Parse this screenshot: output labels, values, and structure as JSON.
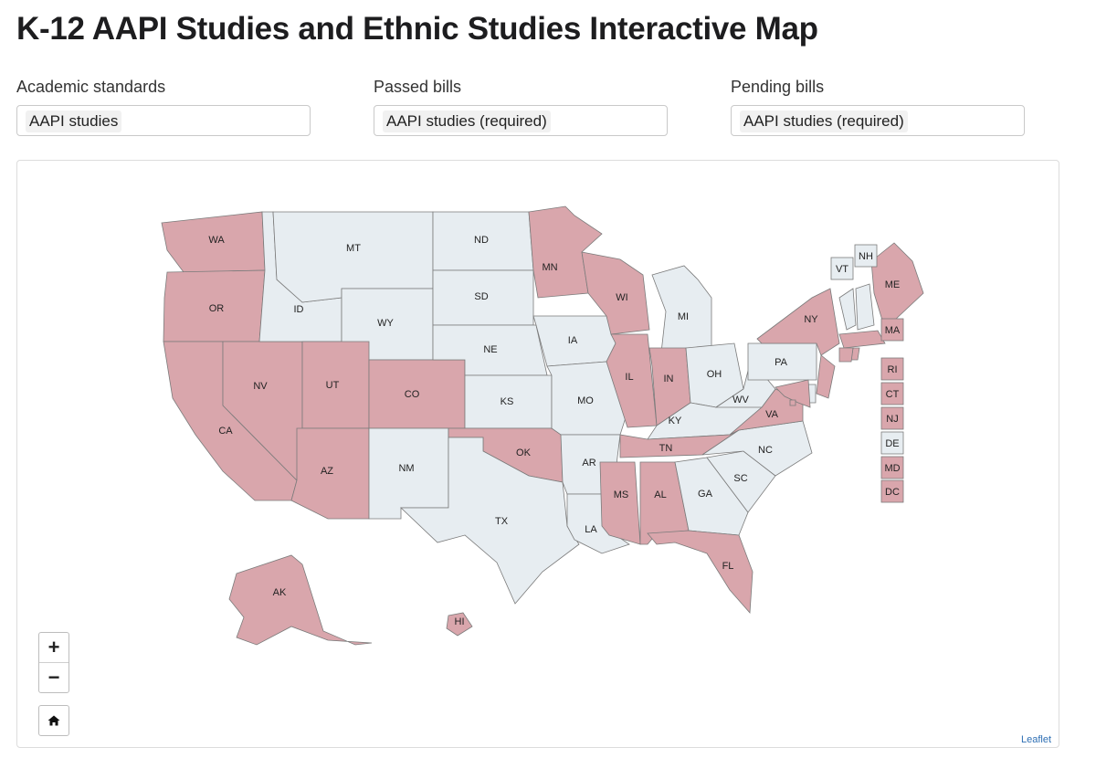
{
  "page": {
    "title": "K-12 AAPI Studies and Ethnic Studies Interactive Map"
  },
  "filters": {
    "academic": {
      "label": "Academic standards",
      "value": "AAPI studies"
    },
    "passed": {
      "label": "Passed bills",
      "value": "AAPI studies (required)"
    },
    "pending": {
      "label": "Pending bills",
      "value": "AAPI studies (required)"
    }
  },
  "map": {
    "colors": {
      "highlighted": "#d9a6ac",
      "default": "#e7edf1"
    },
    "zoom_in_label": "+",
    "zoom_out_label": "−",
    "home_icon": "home-icon",
    "attribution": "Leaflet",
    "states": [
      {
        "code": "WA",
        "highlighted": true
      },
      {
        "code": "OR",
        "highlighted": true
      },
      {
        "code": "CA",
        "highlighted": true
      },
      {
        "code": "NV",
        "highlighted": true
      },
      {
        "code": "ID",
        "highlighted": false
      },
      {
        "code": "MT",
        "highlighted": false
      },
      {
        "code": "WY",
        "highlighted": false
      },
      {
        "code": "UT",
        "highlighted": true
      },
      {
        "code": "AZ",
        "highlighted": true
      },
      {
        "code": "CO",
        "highlighted": true
      },
      {
        "code": "NM",
        "highlighted": false
      },
      {
        "code": "ND",
        "highlighted": false
      },
      {
        "code": "SD",
        "highlighted": false
      },
      {
        "code": "NE",
        "highlighted": false
      },
      {
        "code": "KS",
        "highlighted": false
      },
      {
        "code": "OK",
        "highlighted": true
      },
      {
        "code": "TX",
        "highlighted": false
      },
      {
        "code": "MN",
        "highlighted": true
      },
      {
        "code": "IA",
        "highlighted": false
      },
      {
        "code": "MO",
        "highlighted": false
      },
      {
        "code": "AR",
        "highlighted": false
      },
      {
        "code": "LA",
        "highlighted": false
      },
      {
        "code": "WI",
        "highlighted": true
      },
      {
        "code": "IL",
        "highlighted": true
      },
      {
        "code": "MI",
        "highlighted": false
      },
      {
        "code": "IN",
        "highlighted": true
      },
      {
        "code": "OH",
        "highlighted": false
      },
      {
        "code": "KY",
        "highlighted": false
      },
      {
        "code": "TN",
        "highlighted": true
      },
      {
        "code": "MS",
        "highlighted": true
      },
      {
        "code": "AL",
        "highlighted": true
      },
      {
        "code": "GA",
        "highlighted": false
      },
      {
        "code": "FL",
        "highlighted": true
      },
      {
        "code": "SC",
        "highlighted": false
      },
      {
        "code": "NC",
        "highlighted": false
      },
      {
        "code": "VA",
        "highlighted": true
      },
      {
        "code": "WV",
        "highlighted": false
      },
      {
        "code": "PA",
        "highlighted": false
      },
      {
        "code": "NY",
        "highlighted": true
      },
      {
        "code": "ME",
        "highlighted": true
      },
      {
        "code": "AK",
        "highlighted": true
      },
      {
        "code": "HI",
        "highlighted": true
      },
      {
        "code": "VT",
        "highlighted": false
      },
      {
        "code": "NH",
        "highlighted": false
      },
      {
        "code": "MA",
        "highlighted": true
      },
      {
        "code": "RI",
        "highlighted": true
      },
      {
        "code": "CT",
        "highlighted": true
      },
      {
        "code": "NJ",
        "highlighted": true
      },
      {
        "code": "DE",
        "highlighted": false
      },
      {
        "code": "MD",
        "highlighted": true
      },
      {
        "code": "DC",
        "highlighted": true
      }
    ]
  }
}
